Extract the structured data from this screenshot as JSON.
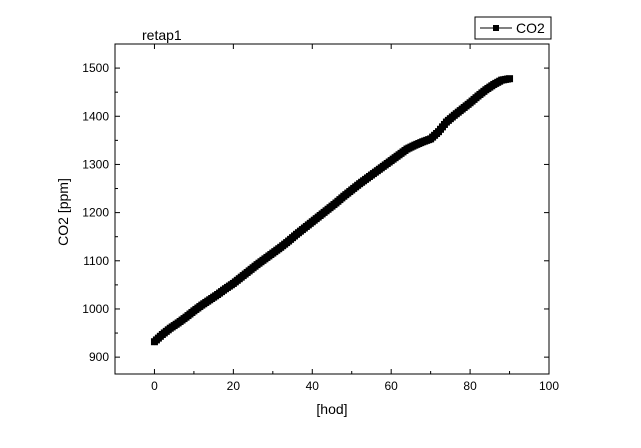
{
  "chart_data": {
    "type": "scatter",
    "title": "retap1",
    "xlabel": "[hod]",
    "ylabel": "CO2 [ppm]",
    "xlim": [
      -10,
      100
    ],
    "ylim": [
      865,
      1550
    ],
    "xticks": [
      0,
      20,
      40,
      60,
      80,
      100
    ],
    "yticks": [
      900,
      1000,
      1100,
      1200,
      1300,
      1400,
      1500
    ],
    "grid": false,
    "legend_position": "top-right",
    "marker": "square",
    "line_style": "solid",
    "color": "#000000",
    "series": [
      {
        "name": "CO2",
        "x": [
          0,
          2,
          4,
          6,
          8,
          10,
          12,
          14,
          16,
          18,
          20,
          22,
          24,
          26,
          28,
          30,
          32,
          34,
          36,
          38,
          40,
          42,
          44,
          46,
          48,
          50,
          52,
          54,
          56,
          58,
          60,
          62,
          64,
          66,
          68,
          70,
          72,
          74,
          76,
          78,
          80,
          82,
          84,
          86,
          88,
          90
        ],
        "y": [
          932,
          947,
          960,
          971,
          983,
          996,
          1008,
          1019,
          1030,
          1042,
          1053,
          1066,
          1079,
          1092,
          1104,
          1116,
          1128,
          1141,
          1155,
          1168,
          1181,
          1194,
          1207,
          1220,
          1234,
          1247,
          1260,
          1272,
          1284,
          1296,
          1308,
          1320,
          1332,
          1340,
          1347,
          1353,
          1368,
          1388,
          1402,
          1415,
          1428,
          1442,
          1455,
          1466,
          1475,
          1478
        ]
      }
    ]
  }
}
